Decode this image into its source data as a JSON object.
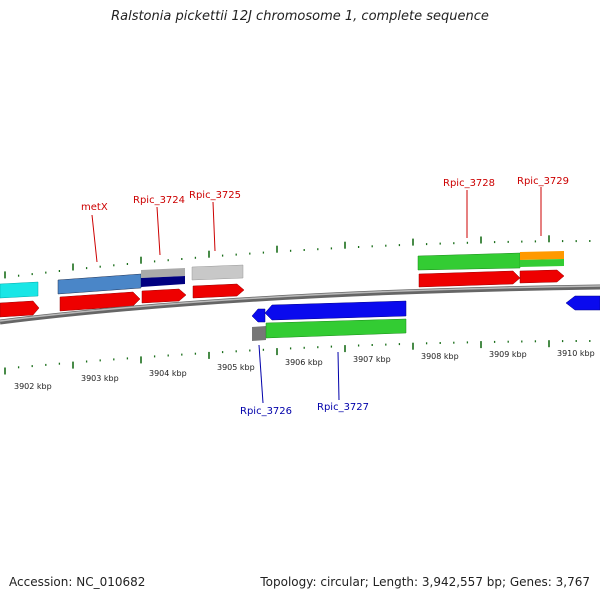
{
  "title": "Ralstonia pickettii 12J chromosome 1, complete sequence",
  "footer": {
    "accession": "Accession: NC_010682",
    "summary": "Topology: circular; Length: 3,942,557 bp; Genes: 3,767"
  },
  "colors": {
    "forward_label": "#cc0000",
    "reverse_label": "#0000aa",
    "cds_red": "#ee0000",
    "backbone": "#888888",
    "tick": "#1a6e1a"
  },
  "scale_labels": [
    "3902 kbp",
    "3903 kbp",
    "3904 kbp",
    "3905 kbp",
    "3906 kbp",
    "3907 kbp",
    "3908 kbp",
    "3909 kbp",
    "3910 kbp"
  ],
  "forward_gene_labels": [
    "metX",
    "Rpic_3724",
    "Rpic_3725",
    "Rpic_3728",
    "Rpic_3729"
  ],
  "reverse_gene_labels": [
    "Rpic_3726",
    "Rpic_3727"
  ]
}
